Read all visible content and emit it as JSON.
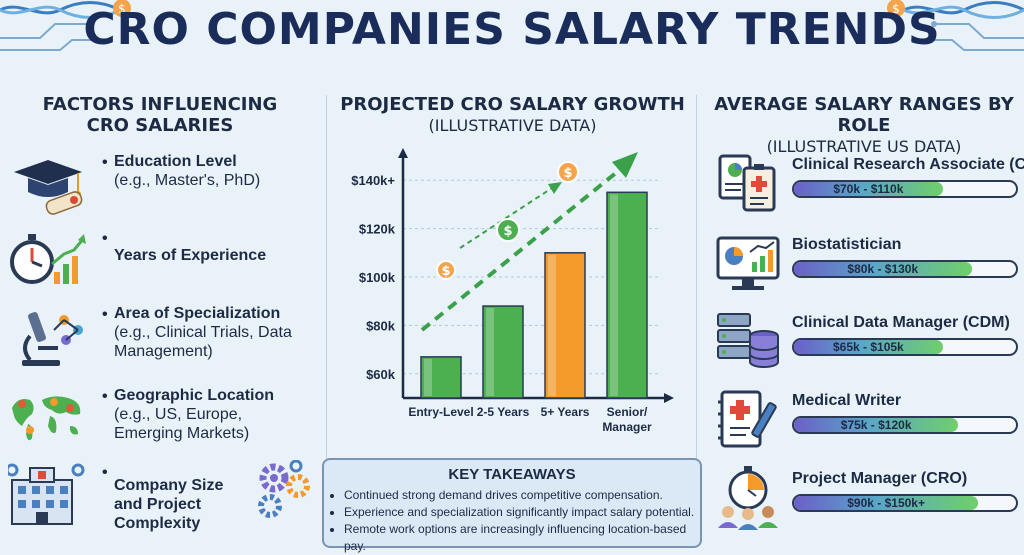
{
  "title": "CRO COMPANIES SALARY TRENDS",
  "factors_section": {
    "title_line1": "FACTORS INFLUENCING",
    "title_line2": "CRO SALARIES",
    "items": [
      {
        "title": "Education Level",
        "detail": "(e.g., Master's, PhD)",
        "icon": "graduation-cap-icon"
      },
      {
        "title": "Years of Experience",
        "detail": "",
        "icon": "stopwatch-growth-icon"
      },
      {
        "title": "Area of Specialization",
        "detail": "(e.g., Clinical Trials, Data Management)",
        "icon": "microscope-icon"
      },
      {
        "title": "Geographic Location",
        "detail": "(e.g., US, Europe, Emerging Markets)",
        "icon": "world-map-icon"
      },
      {
        "title": "Company Size and Project Complexity",
        "detail": "",
        "icon": "building-gears-icon"
      }
    ]
  },
  "growth_section": {
    "title_line1": "PROJECTED CRO SALARY GROWTH",
    "title_line2": "(ILLUSTRATIVE DATA)"
  },
  "chart_data": {
    "type": "bar",
    "categories": [
      "Entry-Level",
      "2-5 Years",
      "5+ Years",
      "Senior/ Manager"
    ],
    "values": [
      67,
      88,
      110,
      135
    ],
    "y_ticks": [
      "$60k",
      "$80k",
      "$100k",
      "$120k",
      "$140k+"
    ],
    "y_tick_values": [
      60,
      80,
      100,
      120,
      140
    ],
    "ylim": [
      50,
      150
    ],
    "bar_colors": [
      "#4caf50",
      "#4caf50",
      "#f39a2b",
      "#4caf50"
    ],
    "grid": true,
    "trend_arrow": true
  },
  "takeaways": {
    "title": "KEY TAKEAWAYS",
    "items": [
      "Continued strong demand drives competitive compensation.",
      "Experience and specialization significantly impact salary potential.",
      "Remote work options are increasingly influencing location-based pay."
    ]
  },
  "roles_section": {
    "title_line1": "AVERAGE SALARY RANGES BY ROLE",
    "title_line2": "(ILLUSTRATIVE US DATA)",
    "roles": [
      {
        "name": "Clinical Research Associate (CRA)",
        "range": "$70k - $110k",
        "fill": 0.67,
        "icon": "clipboard-report-icon"
      },
      {
        "name": "Biostatistician",
        "range": "$80k - $130k",
        "fill": 0.8,
        "icon": "monitor-chart-icon"
      },
      {
        "name": "Clinical Data Manager (CDM)",
        "range": "$65k - $105k",
        "fill": 0.67,
        "icon": "database-server-icon"
      },
      {
        "name": "Medical Writer",
        "range": "$75k - $120k",
        "fill": 0.74,
        "icon": "medical-notebook-icon"
      },
      {
        "name": "Project Manager (CRO)",
        "range": "$90k - $150k+",
        "fill": 0.83,
        "icon": "team-stopwatch-icon"
      }
    ]
  },
  "colors": {
    "background": "#eaf2f9",
    "title": "#1a2d5a",
    "green": "#4caf50",
    "orange": "#f39a2b"
  }
}
